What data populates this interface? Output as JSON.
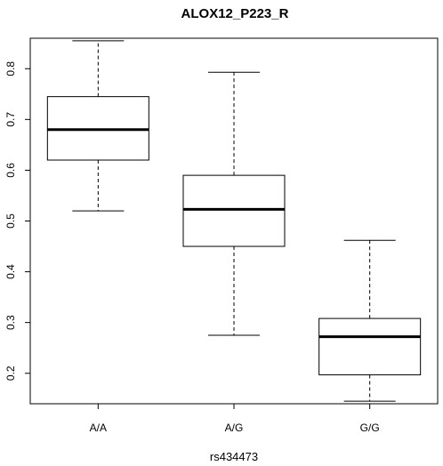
{
  "chart_data": {
    "type": "box",
    "title": "ALOX12_P223_R",
    "xlabel": "rs434473",
    "ylabel": "",
    "ylim": [
      0.14,
      0.86
    ],
    "yticks": [
      "0.2",
      "0.3",
      "0.4",
      "0.5",
      "0.6",
      "0.7",
      "0.8"
    ],
    "categories": [
      "A/A",
      "A/G",
      "G/G"
    ],
    "boxes": [
      {
        "category": "A/A",
        "min": 0.52,
        "q1": 0.62,
        "median": 0.68,
        "q3": 0.745,
        "max": 0.855
      },
      {
        "category": "A/G",
        "min": 0.275,
        "q1": 0.45,
        "median": 0.523,
        "q3": 0.59,
        "max": 0.793
      },
      {
        "category": "G/G",
        "min": 0.145,
        "q1": 0.197,
        "median": 0.272,
        "q3": 0.308,
        "max": 0.462
      }
    ],
    "grid": false,
    "colors": {
      "line": "#000000",
      "background": "#ffffff"
    }
  }
}
